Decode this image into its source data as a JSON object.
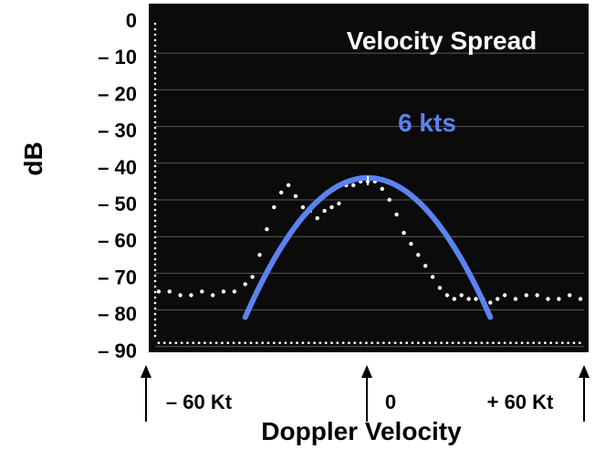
{
  "chart_data": {
    "type": "line",
    "title": "Velocity Spread",
    "xlabel": "Doppler Velocity",
    "ylabel": "dB",
    "y_ticks": [
      "0",
      "– 10",
      "– 20",
      "– 30",
      "– 40",
      "– 50",
      "– 60",
      "– 70",
      "– 80",
      "– 90"
    ],
    "y_tick_values": [
      0,
      -10,
      -20,
      -30,
      -40,
      -50,
      -60,
      -70,
      -80,
      -90
    ],
    "x_ticks": [
      "– 60 Kt",
      "0",
      "+ 60 Kt"
    ],
    "x_tick_values": [
      -60,
      0,
      60
    ],
    "xlim": [
      -60,
      60
    ],
    "ylim": [
      -92,
      2
    ],
    "grid": true,
    "background": "#0b0b0b",
    "grid_color": "#5a5a5a",
    "dot_color": "#ffffff",
    "fit_color": "#5b83f0",
    "annotation": {
      "text": "6 kts",
      "color": "#5b83f0"
    },
    "series": [
      {
        "values_desc": "measured spectrum dots",
        "x": [
          -58,
          -55,
          -52,
          -49,
          -46,
          -43,
          -40,
          -37,
          -34,
          -32,
          -30,
          -28,
          -26,
          -24,
          -22,
          -20,
          -18,
          -16,
          -14,
          -12,
          -10,
          -8,
          -6,
          -4,
          -2,
          0,
          2,
          4,
          6,
          8,
          10,
          12,
          14,
          16,
          18,
          20,
          22,
          24,
          26,
          28,
          30,
          32,
          34,
          36,
          38,
          41,
          44,
          47,
          50,
          53,
          56,
          59
        ],
        "y": [
          -74,
          -74,
          -75,
          -75,
          -74,
          -75,
          -74,
          -74,
          -72,
          -70,
          -64,
          -57,
          -51,
          -47,
          -45,
          -48,
          -51,
          -52,
          -54,
          -52,
          -51,
          -50,
          -45,
          -45,
          -44,
          -44,
          -44,
          -46,
          -49,
          -53,
          -58,
          -61,
          -64,
          -67,
          -70,
          -73,
          -75,
          -76,
          -75,
          -76,
          -76,
          -76,
          -77,
          -76,
          -75,
          -76,
          -75,
          -75,
          -76,
          -76,
          -75,
          -76
        ]
      },
      {
        "values_desc": "noise floor",
        "x": [
          -58,
          -50,
          -42,
          -34,
          -26,
          -18,
          -10,
          -2,
          6,
          14,
          22,
          30,
          38,
          46,
          54,
          60
        ],
        "y": [
          -88,
          -88,
          -88,
          -88,
          -88,
          -88,
          -88,
          -88,
          -88,
          -88,
          -88,
          -88,
          -88,
          -88,
          -88,
          -88
        ]
      },
      {
        "values_desc": "fitted Gaussian",
        "peak_x": 0,
        "peak_y": -43,
        "x_range": [
          -34,
          34
        ],
        "end_y": -81
      }
    ]
  }
}
